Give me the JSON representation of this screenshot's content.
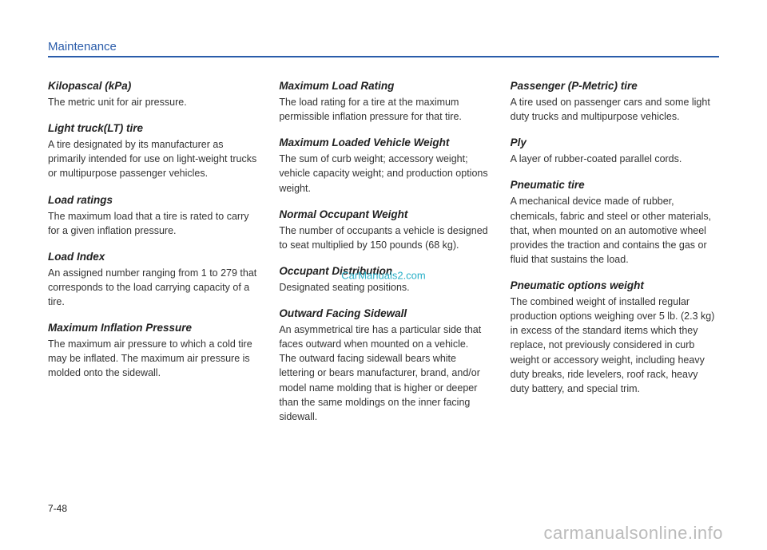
{
  "header": {
    "title": "Maintenance"
  },
  "pageNumber": "7-48",
  "watermark_center": "CarManuals2.com",
  "watermark_bottom": "carmanualsonline.info",
  "columns": [
    [
      {
        "title": "Kilopascal (kPa)",
        "body": "The metric unit for air pressure."
      },
      {
        "title": "Light truck(LT) tire",
        "body": "A tire designated by its manufacturer as primarily intended for use on light-weight trucks or multipurpose passenger vehicles."
      },
      {
        "title": "Load ratings",
        "body": "The maximum load that a tire is rated to carry for a given inflation pressure."
      },
      {
        "title": "Load Index",
        "body": "An assigned number ranging from 1 to 279 that corresponds to the load carrying capacity of a tire."
      },
      {
        "title": "Maximum Inflation Pressure",
        "body": "The maximum air pressure to which a cold tire may be inflated. The maximum air pressure is molded onto the sidewall."
      }
    ],
    [
      {
        "title": "Maximum Load Rating",
        "body": "The load rating for a tire at the maximum permissible inflation pressure for that tire."
      },
      {
        "title": "Maximum Loaded Vehicle Weight",
        "body": "The sum of curb weight; accessory weight; vehicle capacity weight; and production options weight."
      },
      {
        "title": "Normal Occupant Weight",
        "body": "The number of occupants a vehicle is designed to seat multiplied by 150 pounds (68 kg)."
      },
      {
        "title": "Occupant Distribution",
        "body": "Designated seating positions."
      },
      {
        "title": "Outward Facing Sidewall",
        "body": "An asymmetrical tire has a particular side that faces outward when mounted on a vehicle. The outward facing sidewall bears white lettering or bears manufacturer, brand, and/or model name molding that is higher or deeper than the same moldings on the inner facing sidewall."
      }
    ],
    [
      {
        "title": "Passenger (P-Metric) tire",
        "body": "A tire used on passenger cars and some light duty trucks and multipurpose vehicles."
      },
      {
        "title": "Ply",
        "body": "A layer of rubber-coated parallel cords."
      },
      {
        "title": "Pneumatic tire",
        "body": "A mechanical device made of rubber, chemicals, fabric and steel or other materials, that, when mounted on an automotive wheel provides the traction and contains the gas or fluid that sustains the load."
      },
      {
        "title": "Pneumatic options weight",
        "body": "The combined weight of installed regular production options weighing over 5 lb. (2.3 kg) in excess of the standard items which they replace, not previously considered in curb weight or accessory weight, including heavy duty breaks, ride levelers, roof rack, heavy duty battery, and special trim."
      }
    ]
  ]
}
